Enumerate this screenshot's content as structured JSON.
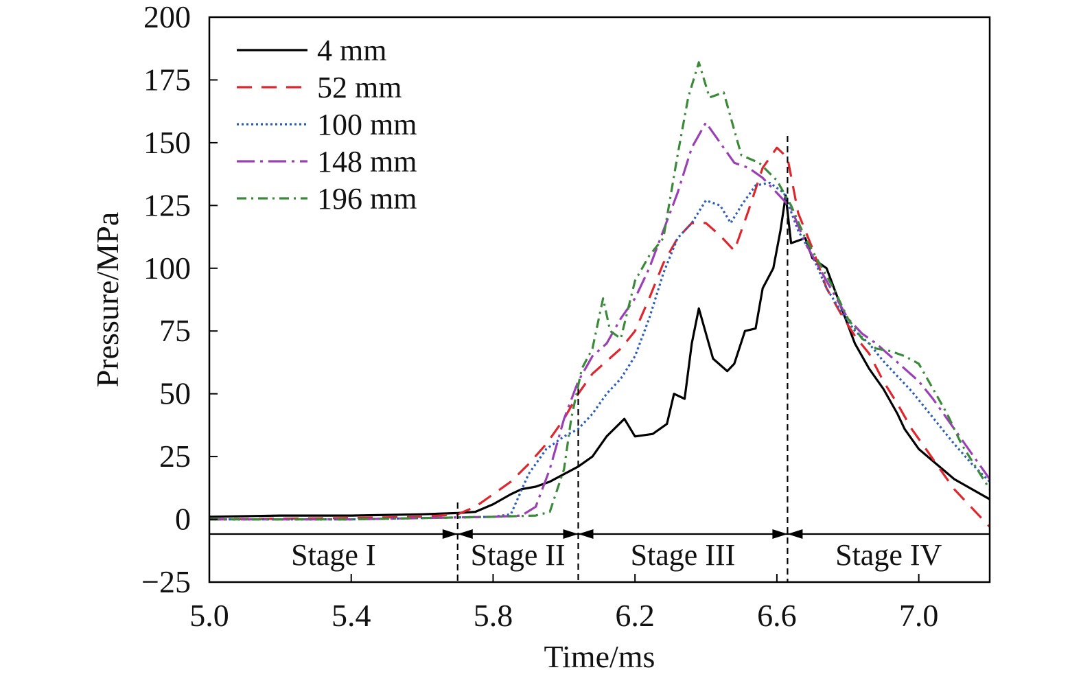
{
  "chart_data": {
    "type": "line",
    "title": "",
    "xlabel": "Time/ms",
    "ylabel": "Pressure/MPa",
    "xlim": [
      5.0,
      7.2
    ],
    "ylim": [
      -25,
      200
    ],
    "xticks": [
      5.0,
      5.4,
      5.8,
      6.2,
      6.6,
      7.0
    ],
    "xtick_labels": [
      "5.0",
      "5.4",
      "5.8",
      "6.2",
      "6.6",
      "7.0"
    ],
    "yticks": [
      200,
      175,
      150,
      125,
      100,
      75,
      50,
      25,
      0,
      -25
    ],
    "ytick_labels": [
      "200",
      "175",
      "150",
      "125",
      "100",
      "75",
      "50",
      "25",
      "0",
      "−25"
    ],
    "grid": false,
    "legend_position": "top-left",
    "series": [
      {
        "name": "4 mm",
        "color": "#000000",
        "dash": "solid",
        "x": [
          5.0,
          5.2,
          5.4,
          5.6,
          5.7,
          5.75,
          5.8,
          5.85,
          5.88,
          5.92,
          5.96,
          6.0,
          6.04,
          6.08,
          6.12,
          6.17,
          6.2,
          6.25,
          6.29,
          6.31,
          6.34,
          6.36,
          6.38,
          6.42,
          6.46,
          6.48,
          6.51,
          6.54,
          6.56,
          6.59,
          6.61,
          6.625,
          6.64,
          6.68,
          6.7,
          6.74,
          6.78,
          6.82,
          6.86,
          6.9,
          6.94,
          6.96,
          7.0,
          7.05,
          7.1,
          7.15,
          7.2
        ],
        "y": [
          1,
          1.5,
          1.5,
          2,
          2.5,
          3,
          6,
          10,
          12,
          13,
          15,
          18,
          21,
          25,
          33,
          40,
          33,
          34,
          38,
          50,
          48,
          70,
          84,
          64,
          59,
          62,
          75,
          76,
          92,
          100,
          115,
          129,
          110,
          112,
          104,
          100,
          85,
          70,
          60,
          52,
          42,
          36,
          28,
          22,
          16,
          12,
          8
        ]
      },
      {
        "name": "52 mm",
        "color": "#e0262d",
        "dash": "22,14",
        "x": [
          5.0,
          5.4,
          5.6,
          5.7,
          5.75,
          5.8,
          5.85,
          5.9,
          5.95,
          6.0,
          6.04,
          6.08,
          6.12,
          6.16,
          6.2,
          6.24,
          6.28,
          6.32,
          6.36,
          6.4,
          6.44,
          6.48,
          6.52,
          6.56,
          6.6,
          6.63,
          6.66,
          6.7,
          6.74,
          6.78,
          6.82,
          6.86,
          6.9,
          6.94,
          6.98,
          7.02,
          7.06,
          7.1,
          7.14,
          7.2
        ],
        "y": [
          0,
          0.5,
          1,
          2,
          5,
          10,
          15,
          22,
          30,
          40,
          50,
          58,
          63,
          68,
          75,
          88,
          102,
          112,
          118,
          118,
          113,
          107,
          123,
          140,
          148,
          144,
          122,
          108,
          92,
          82,
          73,
          66,
          55,
          46,
          36,
          28,
          20,
          12,
          6,
          -3
        ]
      },
      {
        "name": "100 mm",
        "color": "#2a5db8",
        "dash": "3,4",
        "x": [
          5.0,
          5.4,
          5.6,
          5.8,
          5.85,
          5.9,
          5.95,
          6.0,
          6.04,
          6.08,
          6.12,
          6.16,
          6.2,
          6.24,
          6.28,
          6.32,
          6.36,
          6.4,
          6.44,
          6.47,
          6.5,
          6.54,
          6.58,
          6.62,
          6.66,
          6.7,
          6.74,
          6.78,
          6.82,
          6.86,
          6.9,
          6.94,
          6.98,
          7.02,
          7.06,
          7.1,
          7.15,
          7.2
        ],
        "y": [
          0,
          0,
          0.5,
          1,
          2,
          18,
          28,
          33,
          36,
          42,
          50,
          56,
          65,
          80,
          98,
          112,
          118,
          127,
          125,
          118,
          125,
          133,
          134,
          130,
          115,
          105,
          92,
          83,
          75,
          70,
          63,
          57,
          51,
          44,
          37,
          30,
          22,
          15
        ]
      },
      {
        "name": "148 mm",
        "color": "#9b3fb5",
        "dash": "26,8,4,8",
        "x": [
          5.0,
          5.4,
          5.6,
          5.8,
          5.88,
          5.92,
          5.96,
          6.0,
          6.04,
          6.08,
          6.12,
          6.16,
          6.2,
          6.24,
          6.28,
          6.32,
          6.36,
          6.4,
          6.44,
          6.48,
          6.52,
          6.56,
          6.6,
          6.64,
          6.68,
          6.72,
          6.76,
          6.8,
          6.84,
          6.88,
          6.92,
          6.96,
          7.0,
          7.04,
          7.08,
          7.12,
          7.2
        ],
        "y": [
          0,
          0,
          0.5,
          1,
          1.5,
          5,
          20,
          40,
          55,
          65,
          70,
          80,
          88,
          100,
          115,
          130,
          148,
          158,
          150,
          142,
          140,
          136,
          130,
          124,
          110,
          100,
          90,
          80,
          74,
          70,
          65,
          60,
          55,
          48,
          40,
          32,
          16
        ]
      },
      {
        "name": "196 mm",
        "color": "#3a8a3a",
        "dash": "14,7,3,7",
        "x": [
          5.0,
          5.4,
          5.6,
          5.8,
          5.92,
          5.96,
          6.0,
          6.02,
          6.05,
          6.08,
          6.11,
          6.13,
          6.16,
          6.2,
          6.24,
          6.28,
          6.32,
          6.35,
          6.38,
          6.41,
          6.45,
          6.5,
          6.55,
          6.6,
          6.64,
          6.68,
          6.72,
          6.76,
          6.8,
          6.84,
          6.88,
          6.92,
          6.96,
          7.0,
          7.04,
          7.08,
          7.12,
          7.2
        ],
        "y": [
          0,
          0,
          0.5,
          1,
          1.5,
          3,
          20,
          40,
          60,
          68,
          88,
          75,
          72,
          95,
          105,
          112,
          145,
          168,
          182,
          168,
          170,
          145,
          142,
          135,
          125,
          112,
          102,
          92,
          80,
          72,
          68,
          67,
          65,
          62,
          52,
          42,
          30,
          12
        ]
      }
    ],
    "stage_boundaries": [
      5.7,
      6.04,
      6.63
    ],
    "stages": [
      "Stage I",
      "Stage II",
      "Stage III",
      "Stage IV"
    ]
  }
}
